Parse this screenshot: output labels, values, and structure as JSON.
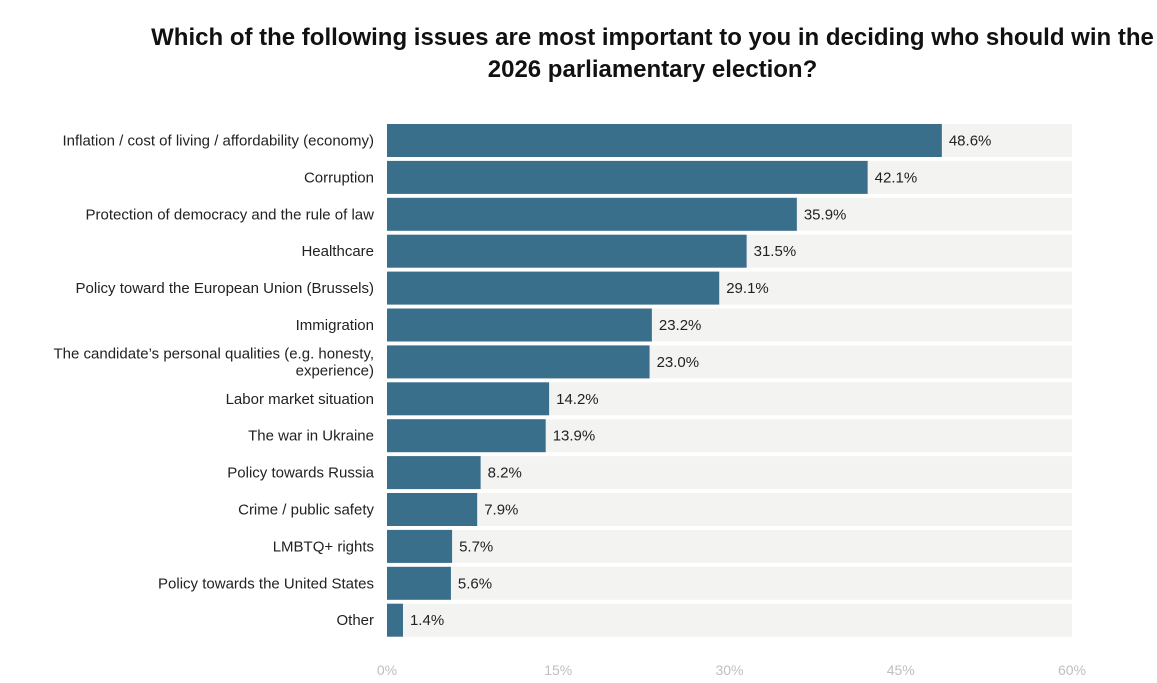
{
  "chart_data": {
    "type": "bar",
    "orientation": "horizontal",
    "title": "Which of the following issues are most important to you in deciding who should win the 2026 parliamentary election?",
    "categories": [
      "Inflation / cost of living / affordability (economy)",
      "Corruption",
      "Protection of democracy and the rule of law",
      "Healthcare",
      "Policy toward the European Union (Brussels)",
      "Immigration",
      "The candidate’s personal qualities (e.g. honesty, experience)",
      "Labor market situation",
      "The war in Ukraine",
      "Policy towards Russia",
      "Crime / public safety",
      "LMBTQ+ rights",
      "Policy towards the United States",
      "Other"
    ],
    "category_lines": [
      [
        "Inflation / cost of living / affordability (economy)"
      ],
      [
        "Corruption"
      ],
      [
        "Protection of democracy and the rule of law"
      ],
      [
        "Healthcare"
      ],
      [
        "Policy toward the European Union (Brussels)"
      ],
      [
        "Immigration"
      ],
      [
        "The candidate’s personal qualities (e.g. honesty,",
        "experience)"
      ],
      [
        "Labor market situation"
      ],
      [
        "The war in Ukraine"
      ],
      [
        "Policy towards Russia"
      ],
      [
        "Crime / public safety"
      ],
      [
        "LMBTQ+ rights"
      ],
      [
        "Policy towards the United States"
      ],
      [
        "Other"
      ]
    ],
    "values": [
      48.6,
      42.1,
      35.9,
      31.5,
      29.1,
      23.2,
      23.0,
      14.2,
      13.9,
      8.2,
      7.9,
      5.7,
      5.6,
      1.4
    ],
    "value_labels": [
      "48.6%",
      "42.1%",
      "35.9%",
      "31.5%",
      "29.1%",
      "23.2%",
      "23.0%",
      "14.2%",
      "13.9%",
      "8.2%",
      "7.9%",
      "5.7%",
      "5.6%",
      "1.4%"
    ],
    "xlim": [
      0,
      60
    ],
    "x_ticks": [
      0,
      15,
      30,
      45,
      60
    ],
    "x_tick_labels": [
      "0%",
      "15%",
      "30%",
      "45%",
      "60%"
    ],
    "xlabel": "",
    "ylabel": "",
    "grid": false,
    "legend": "none"
  },
  "colors": {
    "bar": "#3a6f8c",
    "track": "#f3f3f2",
    "label_text": "#222222",
    "tick_text": "#bfbfbf"
  }
}
